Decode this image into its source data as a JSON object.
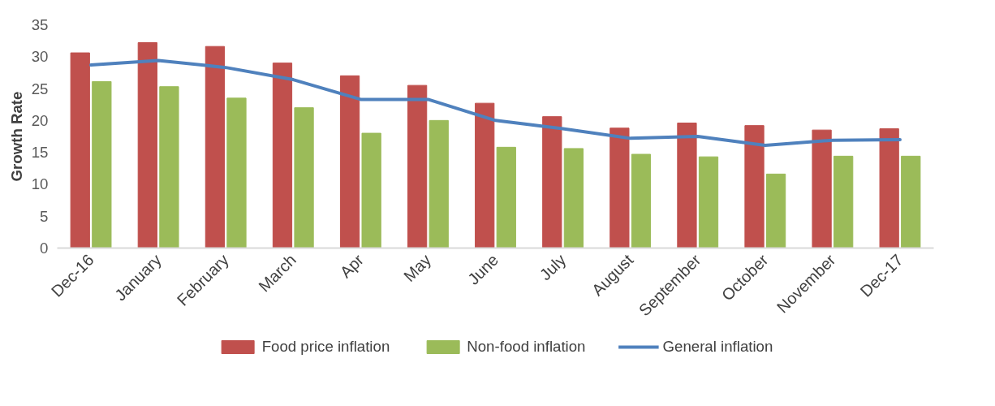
{
  "chart_data": {
    "type": "bar",
    "ylabel": "Growth Rate",
    "categories": [
      "Dec-16",
      "January",
      "February",
      "March",
      "Apr",
      "May",
      "June",
      "July",
      "August",
      "September",
      "October",
      "November",
      "Dec-17"
    ],
    "series": [
      {
        "name": "Food price inflation",
        "color": "#c0504d",
        "values": [
          30.6,
          32.2,
          31.6,
          29.0,
          27.0,
          25.5,
          22.7,
          20.6,
          18.8,
          19.6,
          19.2,
          18.5,
          18.7
        ]
      },
      {
        "name": "Non-food inflation",
        "color": "#9bbb59",
        "values": [
          26.1,
          25.3,
          23.5,
          22.0,
          18.0,
          20.0,
          15.8,
          15.6,
          14.7,
          14.3,
          11.6,
          14.4,
          14.4
        ]
      },
      {
        "name": "General inflation",
        "type": "line",
        "color": "#4f81bd",
        "values": [
          28.7,
          29.4,
          28.3,
          26.4,
          23.3,
          23.3,
          20.0,
          18.7,
          17.2,
          17.5,
          16.1,
          16.9,
          17.0
        ]
      }
    ],
    "ylim": [
      0,
      35
    ],
    "yticks": [
      0,
      5,
      10,
      15,
      20,
      25,
      30,
      35
    ],
    "grid": false,
    "legend": "bottom"
  }
}
